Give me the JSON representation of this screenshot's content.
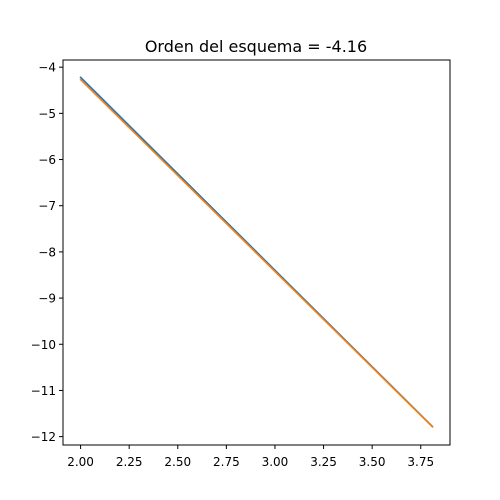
{
  "chart_data": {
    "type": "line",
    "title": "Orden del esquema = -4.16",
    "xlabel": "",
    "ylabel": "",
    "xlim": [
      1.9095,
      3.9005
    ],
    "ylim": [
      -12.1812,
      -3.8448
    ],
    "x_ticks": [
      2.0,
      2.25,
      2.5,
      2.75,
      3.0,
      3.25,
      3.5,
      3.75
    ],
    "x_tick_labels": [
      "2.00",
      "2.25",
      "2.50",
      "2.75",
      "3.00",
      "3.25",
      "3.50",
      "3.75"
    ],
    "y_ticks": [
      -12,
      -11,
      -10,
      -9,
      -8,
      -7,
      -6,
      -5,
      -4
    ],
    "y_tick_labels": [
      "−12",
      "−11",
      "−10",
      "−9",
      "−8",
      "−7",
      "−6",
      "−5",
      "−4"
    ],
    "grid": false,
    "series": [
      {
        "color": "#1f77b4",
        "x": [
          2.0,
          3.81
        ],
        "y": [
          -4.22,
          -11.78
        ]
      },
      {
        "color": "#ff7f0e",
        "x": [
          2.0,
          3.81
        ],
        "y": [
          -4.27,
          -11.79
        ]
      }
    ]
  }
}
